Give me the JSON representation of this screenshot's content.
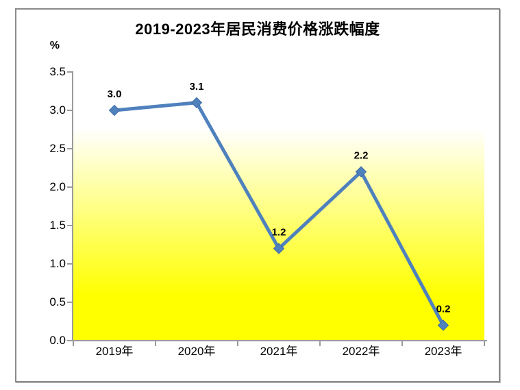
{
  "chart_data": {
    "type": "line",
    "title": "2019-2023年居民消费价格涨跌幅度",
    "unit_label": "%",
    "categories": [
      "2019年",
      "2020年",
      "2021年",
      "2022年",
      "2023年"
    ],
    "values": [
      3.0,
      3.1,
      1.2,
      2.2,
      0.2
    ],
    "data_labels": [
      "3.0",
      "3.1",
      "1.2",
      "2.2",
      "0.2"
    ],
    "xlabel": "",
    "ylabel": "%",
    "ylim": [
      0,
      3.5
    ],
    "ytick_step": 0.5,
    "yticks_top_to_bottom": [
      "3.5",
      "3.0",
      "2.5",
      "2.0",
      "1.5",
      "1.0",
      "0.5",
      "0.0"
    ],
    "grid": false,
    "legend": false,
    "marker": "diamond",
    "line_color": "#4F81BD",
    "marker_color": "#4F81BD",
    "marker_edge_color": "#3F6CA3",
    "axis_color": "#9B9B9B",
    "frame_border_color": "#8A8A8A",
    "plot_gradient_top": "#FFFFFF",
    "plot_gradient_bottom": "#FFFF00",
    "text_color": "#000000"
  }
}
